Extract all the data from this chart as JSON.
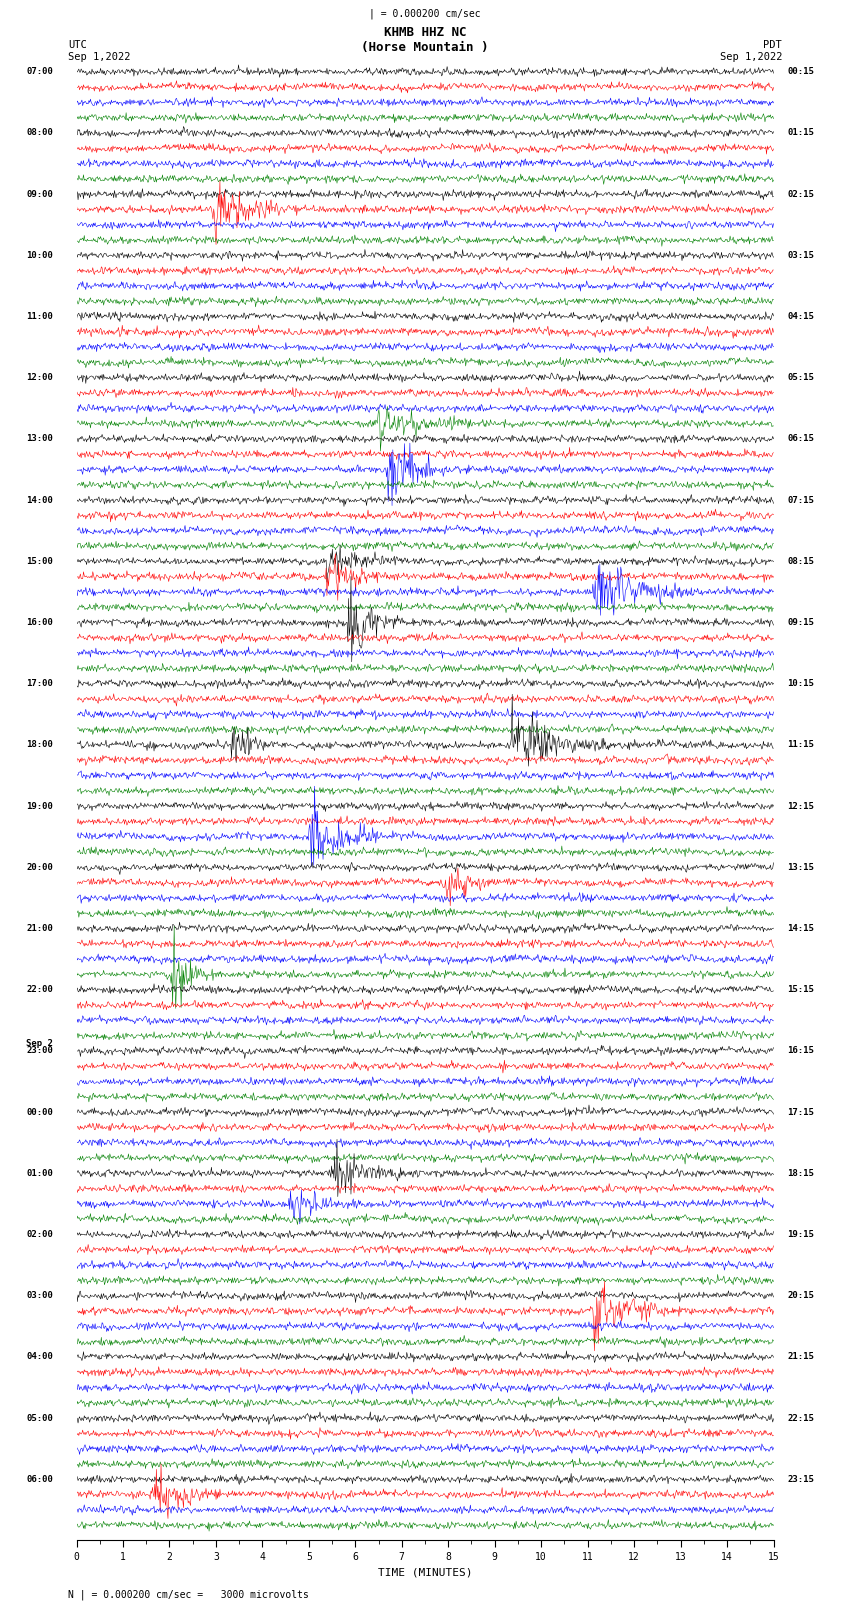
{
  "title_line1": "KHMB HHZ NC",
  "title_line2": "(Horse Mountain )",
  "scale_label": "| = 0.000200 cm/sec",
  "footer_label": "N | = 0.000200 cm/sec =   3000 microvolts",
  "xlabel": "TIME (MINUTES)",
  "utc_label": "UTC\nSep 1,2022",
  "pdt_label": "PDT\nSep 1,2022",
  "sep2_label": "Sep 2",
  "left_times_utc": [
    "07:00",
    "",
    "",
    "",
    "08:00",
    "",
    "",
    "",
    "09:00",
    "",
    "",
    "",
    "10:00",
    "",
    "",
    "",
    "11:00",
    "",
    "",
    "",
    "12:00",
    "",
    "",
    "",
    "13:00",
    "",
    "",
    "",
    "14:00",
    "",
    "",
    "",
    "15:00",
    "",
    "",
    "",
    "16:00",
    "",
    "",
    "",
    "17:00",
    "",
    "",
    "",
    "18:00",
    "",
    "",
    "",
    "19:00",
    "",
    "",
    "",
    "20:00",
    "",
    "",
    "",
    "21:00",
    "",
    "",
    "",
    "22:00",
    "",
    "",
    "",
    "23:00",
    "",
    "",
    "",
    "00:00",
    "",
    "",
    "",
    "01:00",
    "",
    "",
    "",
    "02:00",
    "",
    "",
    "",
    "03:00",
    "",
    "",
    "",
    "04:00",
    "",
    "",
    "",
    "05:00",
    "",
    "",
    "",
    "06:00",
    "",
    "",
    ""
  ],
  "right_times_pdt": [
    "00:15",
    "",
    "",
    "",
    "01:15",
    "",
    "",
    "",
    "02:15",
    "",
    "",
    "",
    "03:15",
    "",
    "",
    "",
    "04:15",
    "",
    "",
    "",
    "05:15",
    "",
    "",
    "",
    "06:15",
    "",
    "",
    "",
    "07:15",
    "",
    "",
    "",
    "08:15",
    "",
    "",
    "",
    "09:15",
    "",
    "",
    "",
    "10:15",
    "",
    "",
    "",
    "11:15",
    "",
    "",
    "",
    "12:15",
    "",
    "",
    "",
    "13:15",
    "",
    "",
    "",
    "14:15",
    "",
    "",
    "",
    "15:15",
    "",
    "",
    "",
    "16:15",
    "",
    "",
    "",
    "17:15",
    "",
    "",
    "",
    "18:15",
    "",
    "",
    "",
    "19:15",
    "",
    "",
    "",
    "20:15",
    "",
    "",
    "",
    "21:15",
    "",
    "",
    "",
    "22:15",
    "",
    "",
    "",
    "23:15",
    "",
    "",
    ""
  ],
  "colors": [
    "black",
    "red",
    "blue",
    "green"
  ],
  "n_rows": 96,
  "n_hours": 24,
  "traces_per_hour": 4,
  "time_minutes": 15,
  "background_color": "white",
  "sep2_row": 64
}
